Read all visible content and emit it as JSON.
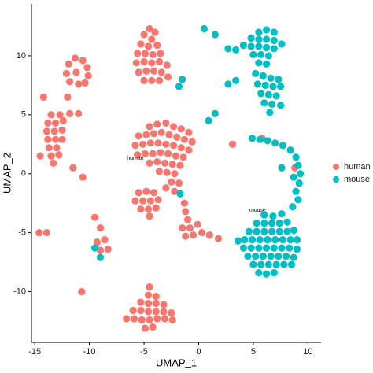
{
  "chart_data": {
    "type": "scatter",
    "x_label": "UMAP_1",
    "y_label": "UMAP_2",
    "xlim": [
      -15.3,
      11.2
    ],
    "ylim": [
      -14.3,
      14.4
    ],
    "xticks": [
      -15,
      -10,
      -5,
      0,
      5,
      10
    ],
    "yticks": [
      -10,
      -5,
      0,
      5,
      10
    ],
    "grid": false,
    "legend": "right",
    "annotations": [
      {
        "text": "human",
        "x": -5.8,
        "y": 1.3
      },
      {
        "text": "mouse",
        "x": 5.4,
        "y": -3.1
      }
    ],
    "series": [
      {
        "name": "human",
        "color": "#F8766D",
        "x": [
          -4.5,
          -4,
          -5,
          -4.3,
          -5.3,
          -4.6,
          -3.8,
          -5.6,
          -4.9,
          -4.2,
          -3.5,
          -5.7,
          -5,
          -4.3,
          -3.6,
          -2.9,
          -5.5,
          -4.8,
          -4.1,
          -3.4,
          -5,
          -4.3,
          -3.6,
          -2.8,
          -11.3,
          -10.6,
          -11.9,
          -10.2,
          -12.1,
          -10.1,
          -11.8,
          -11,
          -10.4,
          -11.2,
          -13.5,
          -12.7,
          -13.8,
          -13.1,
          -12.4,
          -13.9,
          -13.2,
          -12.5,
          -13.8,
          -13.1,
          -12.5,
          -13.7,
          -13,
          -13.5,
          -12.8,
          -13.3,
          -11.8,
          -11,
          -14.2,
          -12,
          -14.5,
          -11.5,
          -4.5,
          -3.8,
          -3,
          -2.3,
          -1.6,
          -0.9,
          -5.5,
          -4.8,
          -4.1,
          -3.4,
          -2.7,
          -2,
          -1.3,
          -0.6,
          -5.8,
          -5.1,
          -4.4,
          -3.7,
          -3,
          -2.3,
          -1.6,
          -0.9,
          -5.6,
          -4.9,
          -4.2,
          -3.5,
          -2.8,
          -2.1,
          -1.4,
          -4.5,
          -3.8,
          -3.1,
          -2.4,
          -1.7,
          -3.6,
          -2.9,
          -2.2,
          -2.5,
          -1.8,
          -2.2,
          -3,
          -5.5,
          -4.8,
          -4.1,
          -5.8,
          -5.1,
          -4.4,
          -3.7,
          -5.3,
          -4.6,
          -3.9,
          -4.5,
          -1.3,
          -1.2,
          -1,
          -1.5,
          -0.8,
          -1.2,
          -0.5,
          0.3,
          1,
          1.8,
          -0.1,
          -14.6,
          -13.9,
          -9.3,
          -8.6,
          -9,
          -8.3,
          -9.5,
          -9,
          -10.6,
          -4.5,
          -4.6,
          -3.9,
          -5.3,
          -4.6,
          -3.9,
          -3.2,
          -6,
          -5.3,
          -4.6,
          -3.9,
          -3.2,
          -2.5,
          -6.6,
          -5.9,
          -5.2,
          -4.5,
          -3.8,
          -3.1,
          -2.4,
          -4.9,
          -4.2,
          3.1,
          5.8,
          8.8,
          -10.7
        ],
        "values": [
          12.3,
          12,
          11.8,
          11.4,
          11,
          10.8,
          10.9,
          10.2,
          10.2,
          10.1,
          10.2,
          9.4,
          9.5,
          9.4,
          9.5,
          9.2,
          8.6,
          8.7,
          8.7,
          8.6,
          7.9,
          7.9,
          7.9,
          8.2,
          9.8,
          9.6,
          9.3,
          9,
          8.5,
          8.3,
          7.8,
          7.6,
          7.7,
          8.6,
          5,
          5,
          4.3,
          4.3,
          4.5,
          3.6,
          3.6,
          3.7,
          2.9,
          2.9,
          2.9,
          2.2,
          2.2,
          1.5,
          1.6,
          0.9,
          5.1,
          5.1,
          6.5,
          6.5,
          1.5,
          0.5,
          4,
          4.2,
          4.3,
          4,
          3.8,
          3.5,
          3.2,
          3.3,
          3.4,
          3.5,
          3.3,
          3.1,
          2.9,
          2.7,
          2.4,
          2.5,
          2.6,
          2.6,
          2.5,
          2.4,
          2.2,
          2,
          1.6,
          1.7,
          1.7,
          1.8,
          1.7,
          1.5,
          1.4,
          0.9,
          1,
          0.9,
          0.8,
          0.7,
          0.2,
          0.1,
          0,
          -0.7,
          -0.8,
          -1.5,
          -1.2,
          -1.6,
          -1.5,
          -1.6,
          -2.3,
          -2.3,
          -2.3,
          -2.2,
          -3,
          -3,
          -2.9,
          -3.6,
          -2.5,
          -3.2,
          -3.9,
          -4.6,
          -4.6,
          -5.3,
          -5.2,
          -5,
          -5.2,
          -5.5,
          -4.3,
          -5,
          -5,
          -5.8,
          -5.6,
          -6.5,
          -6.4,
          -3.7,
          -4.6,
          -0.3,
          -9.6,
          -10.3,
          -10.4,
          -10.9,
          -11,
          -11,
          -11.1,
          -11.6,
          -11.6,
          -11.7,
          -11.7,
          -11.7,
          -11.8,
          -12.3,
          -12.3,
          -12.4,
          -12.4,
          -12.3,
          -12.3,
          -12.4,
          -13.1,
          -13,
          2.5,
          3,
          0.5,
          -10
        ]
      },
      {
        "name": "mouse",
        "color": "#00BFC4",
        "x": [
          6.2,
          5.5,
          6.9,
          4.8,
          5.5,
          6.2,
          6.9,
          4.1,
          4.8,
          5.5,
          6.2,
          6.9,
          3.4,
          2.7,
          5,
          5.7,
          6.4,
          5.5,
          6.2,
          7.6,
          1.5,
          0.5,
          5.2,
          5.9,
          6.6,
          7.3,
          5.4,
          6.1,
          6.8,
          7.5,
          5.7,
          6.4,
          7.1,
          6,
          6.7,
          6.5,
          7.5,
          4.9,
          5.6,
          6.3,
          7,
          7.7,
          8.4,
          8.9,
          9.1,
          9.3,
          8.7,
          9.2,
          8.9,
          9.1,
          8.6,
          7.6,
          6,
          6.8,
          7.6,
          5.3,
          6,
          6.7,
          7.4,
          8.1,
          4.6,
          5.3,
          6,
          6.7,
          7.4,
          8.1,
          8.7,
          4.2,
          4.9,
          5.6,
          6.3,
          7,
          7.7,
          8.4,
          9,
          4.1,
          4.8,
          5.5,
          6.2,
          6.9,
          7.6,
          8.3,
          9,
          4.5,
          5.2,
          5.9,
          6.6,
          7.3,
          8,
          8.7,
          5,
          5.7,
          6.4,
          7.1,
          7.8,
          8.5,
          5.5,
          6.2,
          6.9,
          -1.5,
          -1.8,
          2.7,
          3.4,
          0.9,
          1.5,
          3.6,
          -1.7,
          -9.5,
          -9
        ],
        "values": [
          12.2,
          12,
          12,
          11.5,
          11.4,
          11.4,
          11.3,
          10.9,
          10.8,
          10.8,
          10.7,
          10.6,
          10.5,
          10.6,
          10.1,
          10.1,
          10,
          9.4,
          9.3,
          11,
          11.8,
          12.3,
          8.5,
          8.3,
          8.1,
          8,
          7.6,
          7.5,
          7.4,
          7.4,
          6.8,
          6.7,
          6.6,
          6,
          5.9,
          5.2,
          5.8,
          3,
          2.9,
          2.8,
          2.6,
          2.4,
          2,
          1.4,
          0.7,
          0,
          -0.3,
          -0.8,
          -1.5,
          -2.2,
          -2.8,
          0.5,
          -3.5,
          -3.6,
          -3.4,
          -4.2,
          -4.2,
          -4.2,
          -4.2,
          -4.1,
          -4.9,
          -4.9,
          -4.9,
          -4.9,
          -4.9,
          -4.9,
          -4.8,
          -5.6,
          -5.6,
          -5.6,
          -5.6,
          -5.6,
          -5.6,
          -5.6,
          -5.6,
          -6.3,
          -6.3,
          -6.3,
          -6.3,
          -6.3,
          -6.3,
          -6.3,
          -6.4,
          -7,
          -7,
          -7,
          -7,
          -7,
          -7,
          -7.1,
          -7.7,
          -7.7,
          -7.7,
          -7.7,
          -7.7,
          -7.7,
          -8.4,
          -8.5,
          -8.4,
          8,
          7.4,
          7.6,
          7.9,
          4.5,
          5.1,
          -5.7,
          -1.7,
          -6.3,
          -7.1
        ]
      }
    ]
  }
}
